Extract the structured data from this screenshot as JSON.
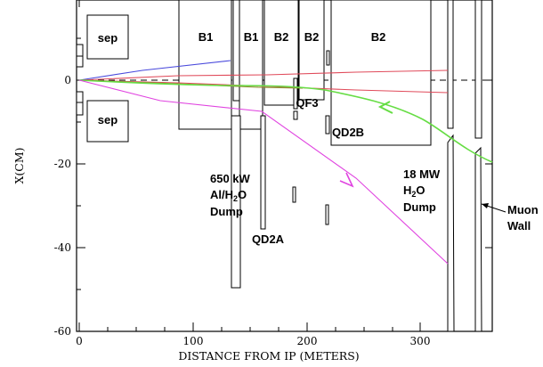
{
  "axes": {
    "xlabel": "DISTANCE FROM IP (METERS)",
    "ylabel": "X(CM)",
    "x_ticks": [
      "0",
      "100",
      "200",
      "300"
    ],
    "y_ticks": [
      "0",
      "-20",
      "-40",
      "-60"
    ]
  },
  "labels": {
    "sep_top": "sep",
    "sep_bottom": "sep",
    "b1_a": "B1",
    "b1_b": "B1",
    "b2_a": "B2",
    "b2_b": "B2",
    "b2_c": "B2",
    "qf3": "QF3",
    "qd2b": "QD2B",
    "qd2a": "QD2A",
    "dump1_line1": "650 kW",
    "dump1_line2": "Al/H",
    "dump1_sub": "2",
    "dump1_line2b": "O",
    "dump1_line3": "Dump",
    "dump2_line1": "18 MW",
    "dump2_line2": "H",
    "dump2_sub": "2",
    "dump2_line2b": "O",
    "dump2_line3": "Dump",
    "muon_line1": "Muon",
    "muon_line2": "Wall"
  },
  "colors": {
    "blue": "#4a4adc",
    "red": "#e04a5a",
    "green": "#66dd44",
    "olive": "#8a8a2a",
    "magenta": "#e044e0"
  }
}
